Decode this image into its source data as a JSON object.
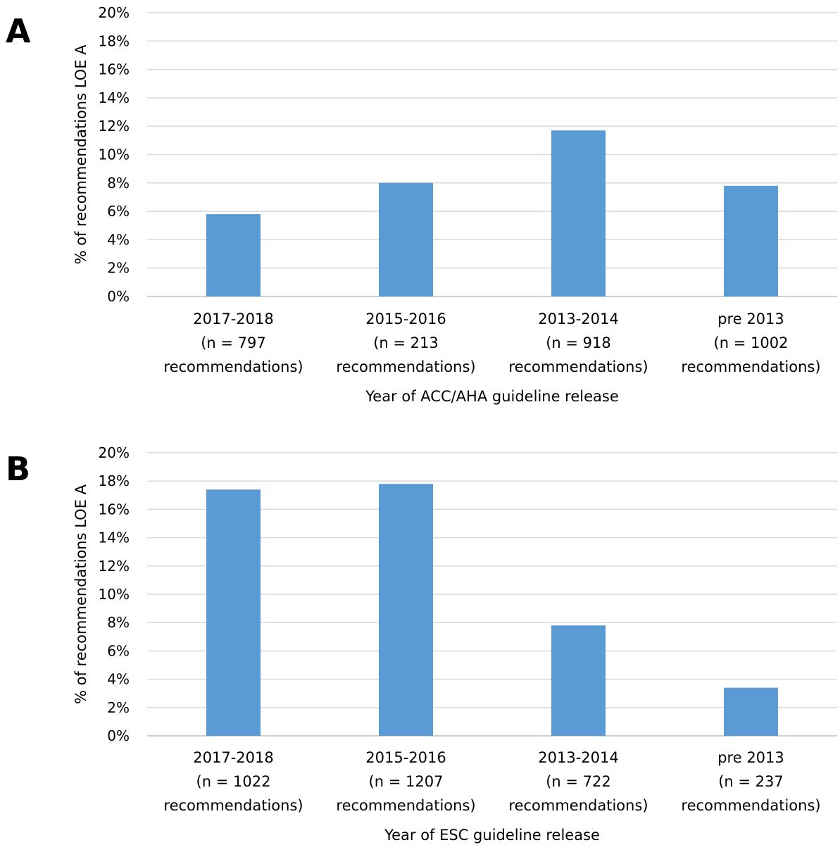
{
  "colors": {
    "bar": "#5b9bd5",
    "grid": "#d9d9d9",
    "axis": "#bfbfbf",
    "text": "#000000"
  },
  "chart_data": [
    {
      "type": "bar",
      "panel_label": "A",
      "categories": [
        [
          "2017-2018",
          "(n = 797",
          "recommendations)"
        ],
        [
          "2015-2016",
          "(n = 213",
          "recommendations)"
        ],
        [
          "2013-2014",
          "(n = 918",
          "recommendations)"
        ],
        [
          "pre 2013",
          "(n = 1002",
          "recommendations)"
        ]
      ],
      "values": [
        5.8,
        8.0,
        11.7,
        7.8
      ],
      "ylabel": "% of recommendations LOE A",
      "xlabel": "Year of ACC/AHA guideline release",
      "ylim": [
        0,
        20
      ],
      "yticks": [
        "0%",
        "2%",
        "4%",
        "6%",
        "8%",
        "10%",
        "12%",
        "14%",
        "16%",
        "18%",
        "20%"
      ],
      "grid": true,
      "legend": "none"
    },
    {
      "type": "bar",
      "panel_label": "B",
      "categories": [
        [
          "2017-2018",
          "(n = 1022",
          "recommendations)"
        ],
        [
          "2015-2016",
          "(n = 1207",
          "recommendations)"
        ],
        [
          "2013-2014",
          "(n = 722",
          "recommendations)"
        ],
        [
          "pre 2013",
          "(n = 237",
          "recommendations)"
        ]
      ],
      "values": [
        17.4,
        17.8,
        7.8,
        3.4
      ],
      "ylabel": "% of recommendations LOE A",
      "xlabel": "Year of ESC guideline release",
      "ylim": [
        0,
        20
      ],
      "yticks": [
        "0%",
        "2%",
        "4%",
        "6%",
        "8%",
        "10%",
        "12%",
        "14%",
        "16%",
        "18%",
        "20%"
      ],
      "grid": true,
      "legend": "none"
    }
  ]
}
